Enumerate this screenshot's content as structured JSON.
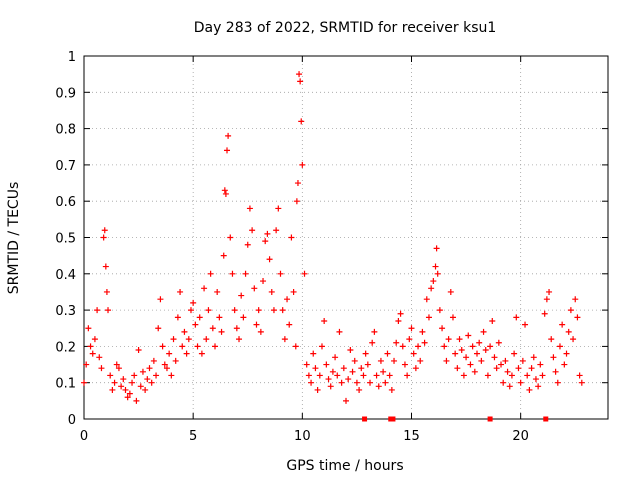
{
  "chart_data": {
    "type": "scatter",
    "title": "Day 283 of 2022, SRMTID for receiver ksu1",
    "xlabel": "GPS time / hours",
    "ylabel": "SRMTID / TECUs",
    "xlim": [
      0,
      24
    ],
    "ylim": [
      0,
      1
    ],
    "grid": true,
    "marker": "+",
    "marker_color": "#ff0000",
    "x_ticks": [
      0,
      5,
      10,
      15,
      20
    ],
    "x_tick_labels": [
      "0",
      "5",
      "10",
      "15",
      "20"
    ],
    "y_ticks": [
      0,
      0.1,
      0.2,
      0.3,
      0.4,
      0.5,
      0.6,
      0.7,
      0.8,
      0.9,
      1
    ],
    "y_tick_labels": [
      "0",
      "0.1",
      "0.2",
      "0.3",
      "0.4",
      "0.5",
      "0.6",
      "0.7",
      "0.8",
      "0.9",
      "1"
    ],
    "series": [
      {
        "name": "ksu1",
        "points": [
          [
            0.0,
            0.1
          ],
          [
            0.1,
            0.15
          ],
          [
            0.2,
            0.25
          ],
          [
            0.3,
            0.2
          ],
          [
            0.4,
            0.18
          ],
          [
            0.5,
            0.22
          ],
          [
            0.6,
            0.3
          ],
          [
            0.7,
            0.17
          ],
          [
            0.8,
            0.14
          ],
          [
            0.9,
            0.5
          ],
          [
            0.95,
            0.52
          ],
          [
            1.0,
            0.42
          ],
          [
            1.05,
            0.35
          ],
          [
            1.1,
            0.3
          ],
          [
            1.2,
            0.12
          ],
          [
            1.3,
            0.08
          ],
          [
            1.4,
            0.1
          ],
          [
            1.5,
            0.15
          ],
          [
            1.6,
            0.14
          ],
          [
            1.7,
            0.09
          ],
          [
            1.8,
            0.11
          ],
          [
            1.9,
            0.08
          ],
          [
            2.0,
            0.06
          ],
          [
            2.1,
            0.07
          ],
          [
            2.2,
            0.1
          ],
          [
            2.3,
            0.12
          ],
          [
            2.4,
            0.05
          ],
          [
            2.5,
            0.19
          ],
          [
            2.6,
            0.09
          ],
          [
            2.7,
            0.13
          ],
          [
            2.8,
            0.08
          ],
          [
            2.9,
            0.11
          ],
          [
            3.0,
            0.14
          ],
          [
            3.1,
            0.1
          ],
          [
            3.2,
            0.16
          ],
          [
            3.3,
            0.12
          ],
          [
            3.4,
            0.25
          ],
          [
            3.5,
            0.33
          ],
          [
            3.6,
            0.2
          ],
          [
            3.7,
            0.15
          ],
          [
            3.8,
            0.14
          ],
          [
            3.9,
            0.18
          ],
          [
            4.0,
            0.12
          ],
          [
            4.1,
            0.22
          ],
          [
            4.2,
            0.16
          ],
          [
            4.3,
            0.28
          ],
          [
            4.4,
            0.35
          ],
          [
            4.5,
            0.2
          ],
          [
            4.6,
            0.24
          ],
          [
            4.7,
            0.18
          ],
          [
            4.8,
            0.22
          ],
          [
            4.9,
            0.3
          ],
          [
            5.0,
            0.32
          ],
          [
            5.1,
            0.26
          ],
          [
            5.2,
            0.2
          ],
          [
            5.3,
            0.28
          ],
          [
            5.4,
            0.18
          ],
          [
            5.5,
            0.36
          ],
          [
            5.6,
            0.22
          ],
          [
            5.7,
            0.3
          ],
          [
            5.8,
            0.4
          ],
          [
            5.9,
            0.25
          ],
          [
            6.0,
            0.2
          ],
          [
            6.1,
            0.35
          ],
          [
            6.2,
            0.28
          ],
          [
            6.3,
            0.24
          ],
          [
            6.4,
            0.45
          ],
          [
            6.45,
            0.63
          ],
          [
            6.5,
            0.62
          ],
          [
            6.55,
            0.74
          ],
          [
            6.6,
            0.78
          ],
          [
            6.7,
            0.5
          ],
          [
            6.8,
            0.4
          ],
          [
            6.9,
            0.3
          ],
          [
            7.0,
            0.25
          ],
          [
            7.1,
            0.22
          ],
          [
            7.2,
            0.34
          ],
          [
            7.3,
            0.28
          ],
          [
            7.4,
            0.4
          ],
          [
            7.5,
            0.48
          ],
          [
            7.6,
            0.58
          ],
          [
            7.7,
            0.52
          ],
          [
            7.8,
            0.36
          ],
          [
            7.9,
            0.26
          ],
          [
            8.0,
            0.3
          ],
          [
            8.1,
            0.24
          ],
          [
            8.2,
            0.38
          ],
          [
            8.3,
            0.49
          ],
          [
            8.4,
            0.51
          ],
          [
            8.5,
            0.44
          ],
          [
            8.6,
            0.35
          ],
          [
            8.7,
            0.3
          ],
          [
            8.8,
            0.52
          ],
          [
            8.9,
            0.58
          ],
          [
            9.0,
            0.4
          ],
          [
            9.1,
            0.3
          ],
          [
            9.2,
            0.22
          ],
          [
            9.3,
            0.33
          ],
          [
            9.4,
            0.26
          ],
          [
            9.5,
            0.5
          ],
          [
            9.6,
            0.35
          ],
          [
            9.7,
            0.2
          ],
          [
            9.75,
            0.6
          ],
          [
            9.8,
            0.65
          ],
          [
            9.85,
            0.95
          ],
          [
            9.9,
            0.93
          ],
          [
            9.95,
            0.82
          ],
          [
            10.0,
            0.7
          ],
          [
            10.1,
            0.4
          ],
          [
            10.2,
            0.15
          ],
          [
            10.3,
            0.12
          ],
          [
            10.4,
            0.1
          ],
          [
            10.5,
            0.18
          ],
          [
            10.6,
            0.14
          ],
          [
            10.7,
            0.08
          ],
          [
            10.8,
            0.12
          ],
          [
            10.9,
            0.2
          ],
          [
            11.0,
            0.27
          ],
          [
            11.1,
            0.15
          ],
          [
            11.2,
            0.11
          ],
          [
            11.3,
            0.09
          ],
          [
            11.4,
            0.13
          ],
          [
            11.5,
            0.17
          ],
          [
            11.6,
            0.12
          ],
          [
            11.7,
            0.24
          ],
          [
            11.8,
            0.1
          ],
          [
            11.9,
            0.14
          ],
          [
            12.0,
            0.05
          ],
          [
            12.1,
            0.11
          ],
          [
            12.2,
            0.19
          ],
          [
            12.3,
            0.13
          ],
          [
            12.4,
            0.16
          ],
          [
            12.5,
            0.1
          ],
          [
            12.6,
            0.08
          ],
          [
            12.7,
            0.14
          ],
          [
            12.8,
            0.12
          ],
          [
            12.9,
            0.18
          ],
          [
            13.0,
            0.15
          ],
          [
            13.1,
            0.1
          ],
          [
            13.2,
            0.21
          ],
          [
            13.3,
            0.24
          ],
          [
            13.4,
            0.12
          ],
          [
            13.5,
            0.09
          ],
          [
            13.6,
            0.16
          ],
          [
            13.7,
            0.13
          ],
          [
            13.8,
            0.1
          ],
          [
            13.9,
            0.18
          ],
          [
            14.0,
            0.12
          ],
          [
            14.1,
            0.08
          ],
          [
            14.2,
            0.16
          ],
          [
            14.3,
            0.21
          ],
          [
            14.4,
            0.27
          ],
          [
            14.5,
            0.29
          ],
          [
            14.6,
            0.2
          ],
          [
            14.7,
            0.15
          ],
          [
            14.8,
            0.12
          ],
          [
            14.9,
            0.22
          ],
          [
            15.0,
            0.25
          ],
          [
            15.1,
            0.18
          ],
          [
            15.2,
            0.14
          ],
          [
            15.3,
            0.2
          ],
          [
            15.4,
            0.16
          ],
          [
            15.5,
            0.24
          ],
          [
            15.6,
            0.21
          ],
          [
            15.7,
            0.33
          ],
          [
            15.8,
            0.28
          ],
          [
            15.9,
            0.36
          ],
          [
            16.0,
            0.38
          ],
          [
            16.1,
            0.42
          ],
          [
            16.15,
            0.47
          ],
          [
            16.2,
            0.4
          ],
          [
            16.3,
            0.3
          ],
          [
            16.4,
            0.25
          ],
          [
            16.5,
            0.2
          ],
          [
            16.6,
            0.16
          ],
          [
            16.7,
            0.22
          ],
          [
            16.8,
            0.35
          ],
          [
            16.9,
            0.28
          ],
          [
            17.0,
            0.18
          ],
          [
            17.1,
            0.14
          ],
          [
            17.2,
            0.22
          ],
          [
            17.3,
            0.19
          ],
          [
            17.4,
            0.12
          ],
          [
            17.5,
            0.17
          ],
          [
            17.6,
            0.23
          ],
          [
            17.7,
            0.15
          ],
          [
            17.8,
            0.2
          ],
          [
            17.9,
            0.13
          ],
          [
            18.0,
            0.18
          ],
          [
            18.1,
            0.21
          ],
          [
            18.2,
            0.16
          ],
          [
            18.3,
            0.24
          ],
          [
            18.4,
            0.19
          ],
          [
            18.5,
            0.12
          ],
          [
            18.6,
            0.2
          ],
          [
            18.7,
            0.27
          ],
          [
            18.8,
            0.17
          ],
          [
            18.9,
            0.14
          ],
          [
            19.0,
            0.21
          ],
          [
            19.1,
            0.15
          ],
          [
            19.2,
            0.1
          ],
          [
            19.3,
            0.16
          ],
          [
            19.4,
            0.13
          ],
          [
            19.5,
            0.09
          ],
          [
            19.6,
            0.12
          ],
          [
            19.7,
            0.18
          ],
          [
            19.8,
            0.28
          ],
          [
            19.9,
            0.14
          ],
          [
            20.0,
            0.1
          ],
          [
            20.1,
            0.16
          ],
          [
            20.2,
            0.26
          ],
          [
            20.3,
            0.12
          ],
          [
            20.4,
            0.08
          ],
          [
            20.5,
            0.14
          ],
          [
            20.6,
            0.17
          ],
          [
            20.7,
            0.11
          ],
          [
            20.8,
            0.09
          ],
          [
            20.9,
            0.15
          ],
          [
            21.0,
            0.12
          ],
          [
            21.1,
            0.29
          ],
          [
            21.2,
            0.33
          ],
          [
            21.3,
            0.35
          ],
          [
            21.4,
            0.22
          ],
          [
            21.5,
            0.17
          ],
          [
            21.6,
            0.13
          ],
          [
            21.7,
            0.1
          ],
          [
            21.8,
            0.2
          ],
          [
            21.9,
            0.26
          ],
          [
            22.0,
            0.15
          ],
          [
            22.1,
            0.18
          ],
          [
            22.2,
            0.24
          ],
          [
            22.3,
            0.3
          ],
          [
            22.4,
            0.22
          ],
          [
            22.5,
            0.33
          ],
          [
            22.6,
            0.28
          ],
          [
            22.7,
            0.12
          ],
          [
            22.8,
            0.1
          ]
        ]
      }
    ],
    "x_axis_markers": [
      12.85,
      14.05,
      14.15,
      18.6,
      21.15
    ]
  }
}
